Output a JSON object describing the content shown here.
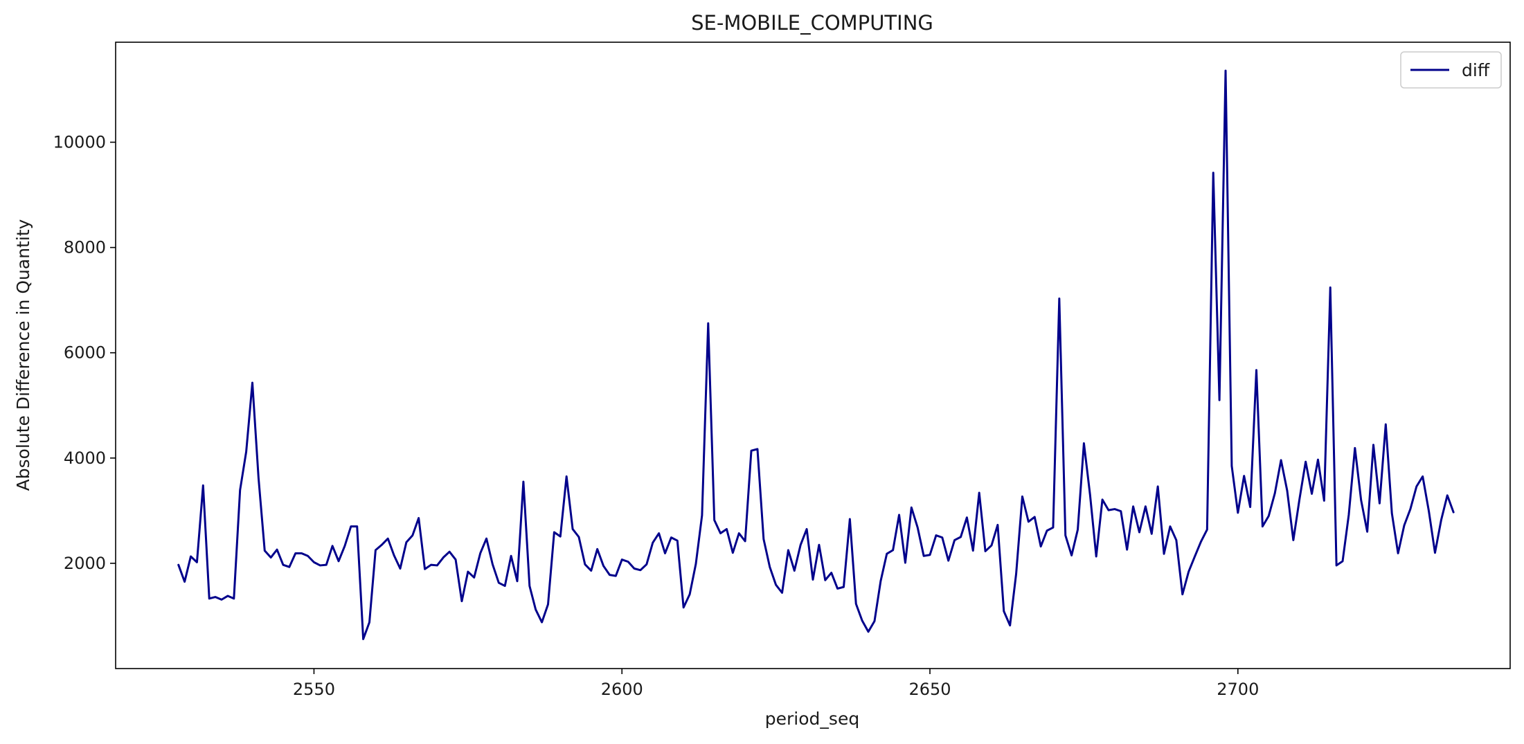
{
  "chart_data": {
    "type": "line",
    "title": "SE-MOBILE_COMPUTING",
    "xlabel": "period_seq",
    "ylabel": "Absolute Difference in Quantity",
    "xlim": [
      2517.8,
      2744.2
    ],
    "ylim": [
      0,
      11900
    ],
    "xticks": [
      2550,
      2600,
      2650,
      2700
    ],
    "yticks": [
      2000,
      4000,
      6000,
      8000,
      10000
    ],
    "grid": false,
    "legend": {
      "position": "top-right",
      "entries": [
        "diff"
      ]
    },
    "series": [
      {
        "name": "diff",
        "color": "#00008b",
        "x_start": 2528,
        "x_step": 1,
        "values": [
          1970,
          1650,
          2130,
          2020,
          3480,
          1330,
          1360,
          1310,
          1380,
          1330,
          3390,
          4120,
          5430,
          3620,
          2240,
          2110,
          2260,
          1970,
          1930,
          2190,
          2190,
          2140,
          2020,
          1960,
          1970,
          2330,
          2040,
          2330,
          2700,
          2700,
          560,
          880,
          2250,
          2350,
          2470,
          2150,
          1900,
          2400,
          2530,
          2860,
          1890,
          1970,
          1960,
          2110,
          2220,
          2070,
          1280,
          1840,
          1730,
          2190,
          2470,
          1980,
          1630,
          1570,
          2140,
          1660,
          3550,
          1570,
          1120,
          880,
          1220,
          2590,
          2510,
          3650,
          2650,
          2500,
          1980,
          1860,
          2270,
          1950,
          1780,
          1760,
          2070,
          2030,
          1900,
          1870,
          1980,
          2390,
          2570,
          2190,
          2490,
          2430,
          1160,
          1410,
          1990,
          2910,
          6560,
          2820,
          2570,
          2650,
          2200,
          2570,
          2420,
          4140,
          4170,
          2460,
          1930,
          1590,
          1440,
          2250,
          1860,
          2350,
          2650,
          1690,
          2350,
          1680,
          1820,
          1520,
          1550,
          2840,
          1230,
          910,
          700,
          900,
          1660,
          2180,
          2250,
          2920,
          2010,
          3060,
          2680,
          2140,
          2160,
          2530,
          2490,
          2050,
          2440,
          2500,
          2870,
          2240,
          3340,
          2230,
          2340,
          2730,
          1090,
          820,
          1800,
          3270,
          2790,
          2880,
          2320,
          2620,
          2680,
          7030,
          2530,
          2150,
          2640,
          4280,
          3300,
          2130,
          3210,
          3010,
          3030,
          2990,
          2260,
          3080,
          2590,
          3080,
          2560,
          3460,
          2180,
          2700,
          2440,
          1410,
          1840,
          2130,
          2410,
          2640,
          9420,
          5100,
          11360,
          3850,
          2960,
          3660,
          3070,
          5670,
          2700,
          2900,
          3330,
          3960,
          3380,
          2440,
          3220,
          3930,
          3320,
          3970,
          3190,
          7240,
          1960,
          2040,
          2920,
          4190,
          3200,
          2600,
          4250,
          3140,
          4640,
          2950,
          2190,
          2720,
          3030,
          3460,
          3650,
          2990,
          2200,
          2820,
          3290,
          2970
        ]
      }
    ]
  }
}
